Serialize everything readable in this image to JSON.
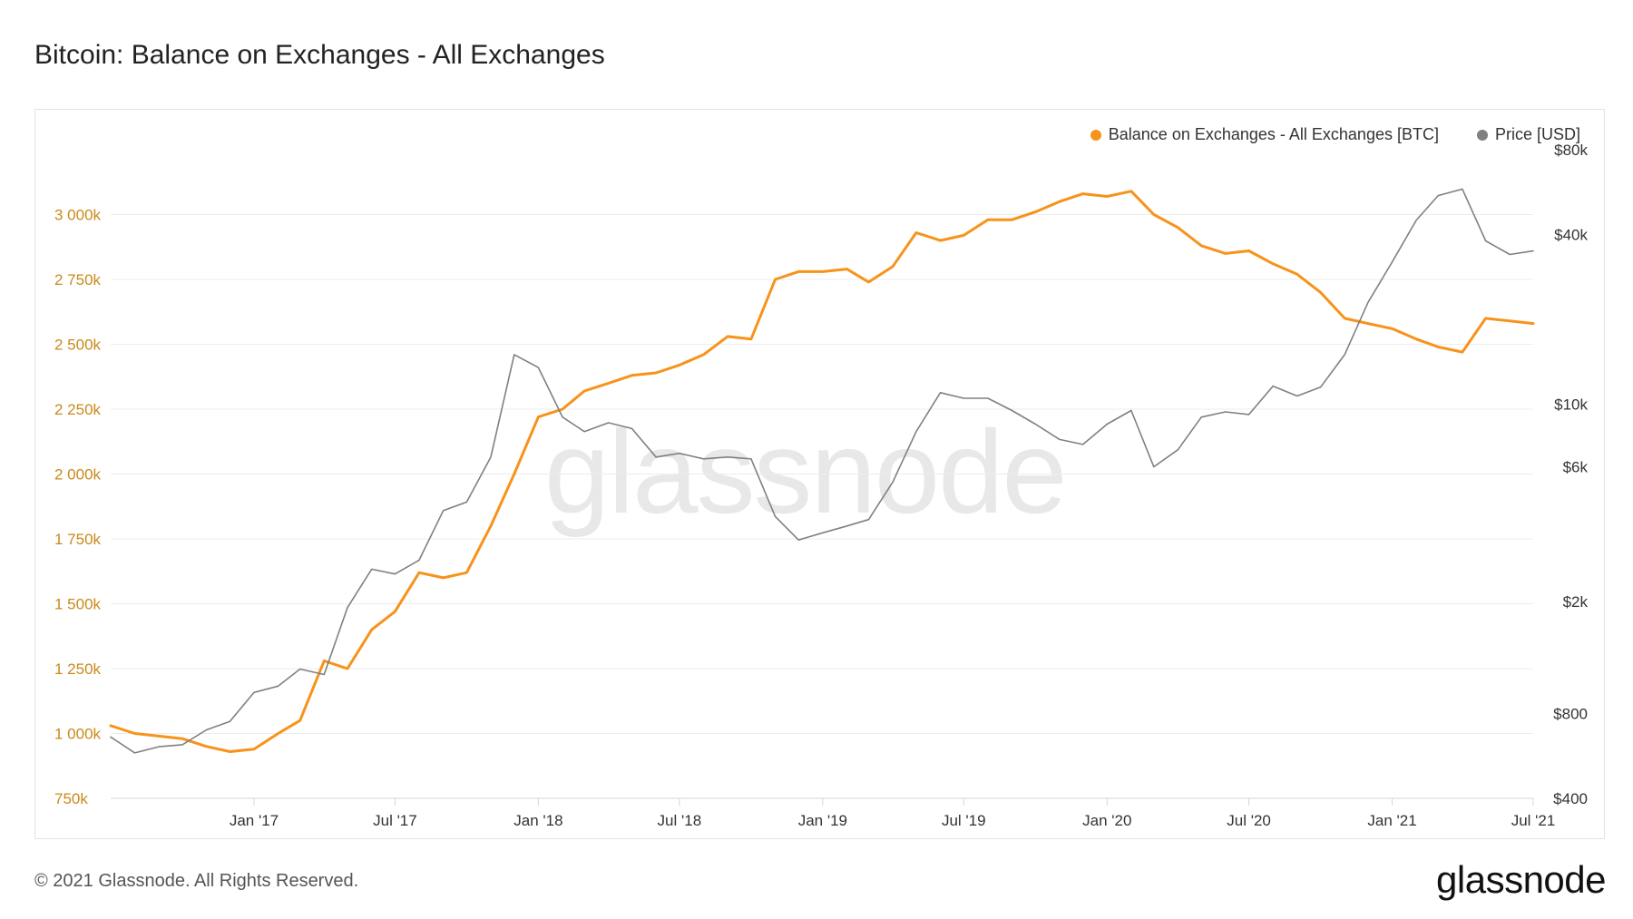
{
  "title": "Bitcoin: Balance on Exchanges - All Exchanges",
  "footer": {
    "copyright": "© 2021 Glassnode. All Rights Reserved.",
    "logo": "glassnode"
  },
  "watermark": "glassnode",
  "legend": [
    {
      "label": "Balance on Exchanges - All Exchanges [BTC]",
      "color": "#f7931a"
    },
    {
      "label": "Price [USD]",
      "color": "#808080"
    }
  ],
  "chart_data": {
    "type": "line",
    "title": "Bitcoin: Balance on Exchanges - All Exchanges",
    "x_ticks": [
      "Jan '17",
      "Jul '17",
      "Jan '18",
      "Jul '18",
      "Jan '19",
      "Jul '19",
      "Jan '20",
      "Jul '20",
      "Jan '21",
      "Jul '21"
    ],
    "x_tick_dates": [
      "2017-01-01",
      "2017-07-01",
      "2018-01-01",
      "2018-07-01",
      "2019-01-01",
      "2019-07-01",
      "2020-01-01",
      "2020-07-01",
      "2021-01-01",
      "2021-07-01"
    ],
    "xlim": [
      "2016-07-01",
      "2021-07-01"
    ],
    "left_axis": {
      "ticks": [
        "750k",
        "1 000k",
        "1 250k",
        "1 500k",
        "1 750k",
        "2 000k",
        "2 250k",
        "2 500k",
        "2 750k",
        "3 000k"
      ],
      "tick_values": [
        750000,
        1000000,
        1250000,
        1500000,
        1750000,
        2000000,
        2250000,
        2500000,
        2750000,
        3000000
      ],
      "ylim": [
        750000,
        3250000
      ],
      "color": "#c98a1b"
    },
    "right_axis": {
      "scale": "log",
      "ticks": [
        "$400",
        "$800",
        "$2k",
        "$6k",
        "$10k",
        "$40k",
        "$80k"
      ],
      "tick_values": [
        400,
        800,
        2000,
        6000,
        10000,
        40000,
        80000
      ],
      "ylim": [
        400,
        80000
      ]
    },
    "grid": "horizontal",
    "legend_position": "top-right",
    "series": [
      {
        "name": "Balance on Exchanges - All Exchanges [BTC]",
        "axis": "left",
        "color": "#f7931a",
        "x": [
          "2016-07-01",
          "2016-08-01",
          "2016-09-01",
          "2016-10-01",
          "2016-11-01",
          "2016-12-01",
          "2017-01-01",
          "2017-02-01",
          "2017-03-01",
          "2017-04-01",
          "2017-05-01",
          "2017-06-01",
          "2017-07-01",
          "2017-08-01",
          "2017-09-01",
          "2017-10-01",
          "2017-11-01",
          "2017-12-01",
          "2018-01-01",
          "2018-02-01",
          "2018-03-01",
          "2018-04-01",
          "2018-05-01",
          "2018-06-01",
          "2018-07-01",
          "2018-08-01",
          "2018-09-01",
          "2018-10-01",
          "2018-11-01",
          "2018-12-01",
          "2019-01-01",
          "2019-02-01",
          "2019-03-01",
          "2019-04-01",
          "2019-05-01",
          "2019-06-01",
          "2019-07-01",
          "2019-08-01",
          "2019-09-01",
          "2019-10-01",
          "2019-11-01",
          "2019-12-01",
          "2020-01-01",
          "2020-02-01",
          "2020-03-01",
          "2020-04-01",
          "2020-05-01",
          "2020-06-01",
          "2020-07-01",
          "2020-08-01",
          "2020-09-01",
          "2020-10-01",
          "2020-11-01",
          "2020-12-01",
          "2021-01-01",
          "2021-02-01",
          "2021-03-01",
          "2021-04-01",
          "2021-05-01",
          "2021-06-01",
          "2021-07-01"
        ],
        "values": [
          1030000,
          1000000,
          990000,
          980000,
          950000,
          930000,
          940000,
          1000000,
          1050000,
          1280000,
          1250000,
          1400000,
          1470000,
          1620000,
          1600000,
          1620000,
          1800000,
          2000000,
          2220000,
          2250000,
          2320000,
          2350000,
          2380000,
          2390000,
          2420000,
          2460000,
          2530000,
          2520000,
          2750000,
          2780000,
          2780000,
          2790000,
          2740000,
          2800000,
          2930000,
          2900000,
          2920000,
          2980000,
          2980000,
          3010000,
          3050000,
          3080000,
          3070000,
          3090000,
          3000000,
          2950000,
          2880000,
          2850000,
          2860000,
          2810000,
          2770000,
          2700000,
          2600000,
          2580000,
          2560000,
          2520000,
          2490000,
          2470000,
          2600000,
          2590000,
          2580000
        ]
      },
      {
        "name": "Price [USD]",
        "axis": "right",
        "color": "#808080",
        "x": [
          "2016-07-01",
          "2016-08-01",
          "2016-09-01",
          "2016-10-01",
          "2016-11-01",
          "2016-12-01",
          "2017-01-01",
          "2017-02-01",
          "2017-03-01",
          "2017-04-01",
          "2017-05-01",
          "2017-06-01",
          "2017-07-01",
          "2017-08-01",
          "2017-09-01",
          "2017-10-01",
          "2017-11-01",
          "2017-12-01",
          "2018-01-01",
          "2018-02-01",
          "2018-03-01",
          "2018-04-01",
          "2018-05-01",
          "2018-06-01",
          "2018-07-01",
          "2018-08-01",
          "2018-09-01",
          "2018-10-01",
          "2018-11-01",
          "2018-12-01",
          "2019-01-01",
          "2019-02-01",
          "2019-03-01",
          "2019-04-01",
          "2019-05-01",
          "2019-06-01",
          "2019-07-01",
          "2019-08-01",
          "2019-09-01",
          "2019-10-01",
          "2019-11-01",
          "2019-12-01",
          "2020-01-01",
          "2020-02-01",
          "2020-03-01",
          "2020-04-01",
          "2020-05-01",
          "2020-06-01",
          "2020-07-01",
          "2020-08-01",
          "2020-09-01",
          "2020-10-01",
          "2020-11-01",
          "2020-12-01",
          "2021-01-01",
          "2021-02-01",
          "2021-03-01",
          "2021-04-01",
          "2021-05-01",
          "2021-06-01",
          "2021-07-01"
        ],
        "values": [
          660,
          580,
          610,
          620,
          700,
          750,
          950,
          1000,
          1150,
          1100,
          1900,
          2600,
          2500,
          2800,
          4200,
          4500,
          6500,
          15000,
          13500,
          9000,
          8000,
          8600,
          8200,
          6500,
          6700,
          6400,
          6500,
          6400,
          4000,
          3300,
          3500,
          3700,
          3900,
          5300,
          8000,
          11000,
          10500,
          10500,
          9500,
          8500,
          7500,
          7200,
          8500,
          9500,
          6000,
          6900,
          9000,
          9400,
          9200,
          11600,
          10700,
          11500,
          15000,
          23000,
          32000,
          45000,
          55000,
          58000,
          38000,
          34000,
          35000
        ]
      }
    ]
  }
}
